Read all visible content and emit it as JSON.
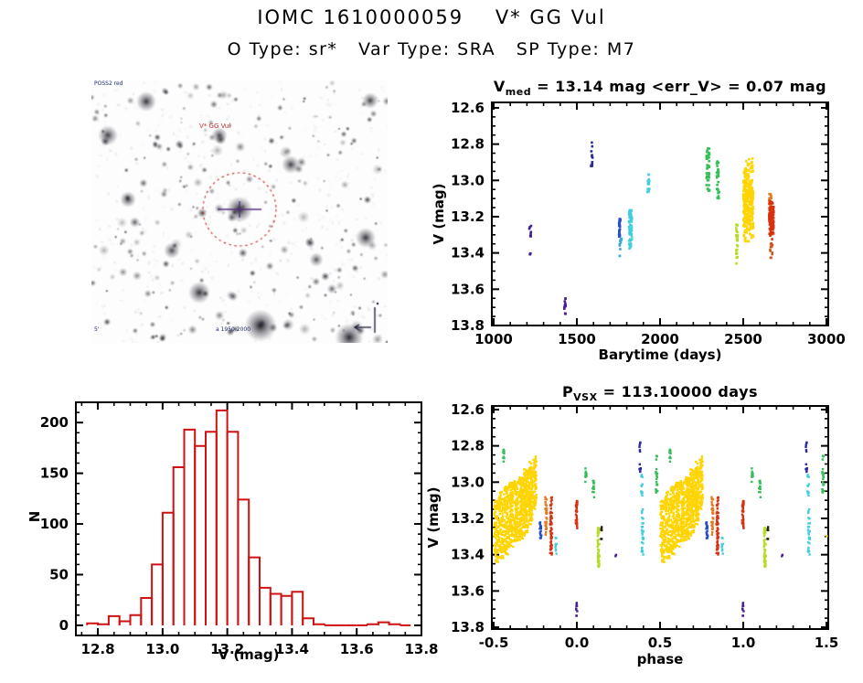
{
  "page": {
    "title": "IOMC 1610000059    V* GG Vul",
    "subtitle": "O Type: sr*   Var Type: SRA   SP Type: M7"
  },
  "finding_chart": {
    "survey_label": "POSS2 red",
    "target_label": "V* GG Vul",
    "coords_label": "a 1950 2000",
    "scale_label": "5'",
    "circle_color": "#cc2222"
  },
  "chart_data": [
    {
      "id": "lightcurve",
      "type": "scatter",
      "title": "V_med = 13.14 mag <err_V> = 0.07 mag",
      "title_base": "V",
      "title_sub": "med",
      "title_rest": " = 13.14 mag <err_V> = 0.07 mag",
      "xlabel": "Barytime (days)",
      "ylabel": "V (mag)",
      "xlim": [
        989,
        3011
      ],
      "ylim": [
        12.57,
        13.8
      ],
      "xticks": [
        1000,
        1500,
        2000,
        2500,
        3000
      ],
      "xtick_labels": [
        "1000",
        "1500",
        "2000",
        "2500",
        "3000"
      ],
      "yticks": [
        12.6,
        12.8,
        13.0,
        13.2,
        13.4,
        13.6,
        13.8
      ],
      "ytick_labels": [
        "12.6",
        "12.8",
        "13.0",
        "13.2",
        "13.4",
        "13.6",
        "13.8"
      ],
      "x_minor_step": 100,
      "y_minor_step": 0.05,
      "marker": "square",
      "marker_size": 2.6,
      "wrap": false,
      "clusters": [
        {
          "color": "#41208c",
          "x": 1220,
          "xs": 6,
          "y0": 13.25,
          "y1": 13.32,
          "n": 7
        },
        {
          "color": "#41208c",
          "x": 1219,
          "xs": 3,
          "y0": 13.39,
          "y1": 13.41,
          "n": 3
        },
        {
          "color": "#4a1f96",
          "x": 1428,
          "xs": 5,
          "y0": 13.65,
          "y1": 13.71,
          "n": 12
        },
        {
          "color": "#4a1f96",
          "x": 1430,
          "xs": 2,
          "y0": 13.72,
          "y1": 13.74,
          "n": 2
        },
        {
          "color": "#2b2b9e",
          "x": 1590,
          "xs": 5,
          "y0": 12.77,
          "y1": 12.96,
          "n": 14
        },
        {
          "color": "#2750c8",
          "x": 1757,
          "xs": 4,
          "y0": 13.21,
          "y1": 13.31,
          "n": 26
        },
        {
          "color": "#35a8d8",
          "x": 1763,
          "xs": 7,
          "y0": 13.32,
          "y1": 13.42,
          "n": 9
        },
        {
          "color": "#3fcfdf",
          "x": 1822,
          "xs": 9,
          "y0": 13.16,
          "y1": 13.38,
          "n": 55
        },
        {
          "color": "#3fcfdf",
          "x": 1930,
          "xs": 6,
          "y0": 12.96,
          "y1": 13.07,
          "n": 16
        },
        {
          "color": "#35bf58",
          "x": 2288,
          "xs": 9,
          "y0": 12.82,
          "y1": 13.06,
          "n": 45
        },
        {
          "color": "#35bf58",
          "x": 2348,
          "xs": 7,
          "y0": 12.89,
          "y1": 13.1,
          "n": 28
        },
        {
          "color": "#b4dd26",
          "x": 2462,
          "xs": 5,
          "y0": 13.23,
          "y1": 13.47,
          "n": 30
        },
        {
          "color": "#ffd400",
          "x": 2530,
          "xs": 30,
          "y0": 12.86,
          "y1": 13.36,
          "n": 300,
          "bias": "mid"
        },
        {
          "color": "#e8791e",
          "x": 2662,
          "xs": 8,
          "y0": 13.07,
          "y1": 13.15,
          "n": 14
        },
        {
          "color": "#d93110",
          "x": 2669,
          "xs": 14,
          "y0": 13.1,
          "y1": 13.33,
          "n": 110,
          "bias": "mid"
        },
        {
          "color": "#c9571c",
          "x": 2668,
          "xs": 8,
          "y0": 13.33,
          "y1": 13.43,
          "n": 12
        }
      ]
    },
    {
      "id": "histogram",
      "type": "histogram",
      "color": "#cf1211",
      "xlabel": "V (mag)",
      "ylabel": "N",
      "xlim": [
        12.732,
        13.8
      ],
      "ylim": [
        220,
        -10
      ],
      "xticks": [
        12.8,
        13.0,
        13.2,
        13.4,
        13.6,
        13.8
      ],
      "xtick_labels": [
        "12.8",
        "13.0",
        "13.2",
        "13.4",
        "13.6",
        "13.8"
      ],
      "yticks": [
        0,
        50,
        100,
        150,
        200
      ],
      "ytick_labels": [
        "0",
        "50",
        "100",
        "150",
        "200"
      ],
      "x_minor_step": 0.05,
      "y_minor_step": 10,
      "bin_start": 12.7667,
      "bin_width": 0.03333,
      "counts": [
        2,
        1,
        9,
        4,
        10,
        27,
        60,
        111,
        156,
        193,
        177,
        191,
        212,
        191,
        124,
        67,
        37,
        31,
        29,
        33,
        7,
        1,
        0,
        0,
        0,
        0,
        1,
        3,
        1,
        0
      ]
    },
    {
      "id": "phase",
      "type": "scatter",
      "title": "P_VSX = 113.10000 days",
      "title_base": "P",
      "title_sub": "VSX",
      "title_rest": " = 113.10000 days",
      "xlabel": "phase",
      "ylabel": "V (mag)",
      "xlim": [
        -0.511,
        1.511
      ],
      "ylim": [
        12.58,
        13.81
      ],
      "xticks": [
        -0.5,
        0.0,
        0.5,
        1.0,
        1.5
      ],
      "xtick_labels": [
        "-0.5",
        "0.0",
        "0.5",
        "1.0",
        "1.5"
      ],
      "yticks": [
        12.6,
        12.8,
        13.0,
        13.2,
        13.4,
        13.6,
        13.8
      ],
      "ytick_labels": [
        "12.6",
        "12.8",
        "13.0",
        "13.2",
        "13.4",
        "13.6",
        "13.8"
      ],
      "x_minor_step": 0.1,
      "y_minor_step": 0.05,
      "marker": "square",
      "marker_size": 2.4,
      "wrap": true,
      "clusters": [
        {
          "color": "#ffd400",
          "x": 0.515,
          "xs": 0.013,
          "y0": 13.1,
          "y1": 13.44,
          "n": 90
        },
        {
          "color": "#ffd400",
          "x": 0.545,
          "xs": 0.013,
          "y0": 13.05,
          "y1": 13.42,
          "n": 110
        },
        {
          "color": "#ffd400",
          "x": 0.575,
          "xs": 0.013,
          "y0": 13.02,
          "y1": 13.4,
          "n": 120
        },
        {
          "color": "#ffd400",
          "x": 0.605,
          "xs": 0.013,
          "y0": 13.0,
          "y1": 13.36,
          "n": 120
        },
        {
          "color": "#ffd400",
          "x": 0.635,
          "xs": 0.013,
          "y0": 12.99,
          "y1": 13.33,
          "n": 120
        },
        {
          "color": "#ffd400",
          "x": 0.665,
          "xs": 0.013,
          "y0": 12.97,
          "y1": 13.32,
          "n": 130
        },
        {
          "color": "#ffd400",
          "x": 0.695,
          "xs": 0.013,
          "y0": 12.93,
          "y1": 13.3,
          "n": 130
        },
        {
          "color": "#ffd400",
          "x": 0.722,
          "xs": 0.012,
          "y0": 12.87,
          "y1": 13.28,
          "n": 140,
          "bias": "mid"
        },
        {
          "color": "#ffd400",
          "x": 0.748,
          "xs": 0.01,
          "y0": 12.85,
          "y1": 13.15,
          "n": 70
        },
        {
          "color": "#35bf58",
          "x": 0.56,
          "xs": 0.004,
          "y0": 12.82,
          "y1": 12.89,
          "n": 10
        },
        {
          "color": "#2750c8",
          "x": 0.782,
          "xs": 0.005,
          "y0": 13.22,
          "y1": 13.31,
          "n": 20
        },
        {
          "color": "#e8791e",
          "x": 0.815,
          "xs": 0.005,
          "y0": 13.08,
          "y1": 13.3,
          "n": 35
        },
        {
          "color": "#d93110",
          "x": 0.845,
          "xs": 0.006,
          "y0": 13.07,
          "y1": 13.43,
          "n": 55,
          "bias": "mid"
        },
        {
          "color": "#3fcfdf",
          "x": 0.875,
          "xs": 0.005,
          "y0": 13.3,
          "y1": 13.42,
          "n": 9
        },
        {
          "color": "#d93110",
          "x": 0.998,
          "xs": 0.005,
          "y0": 13.1,
          "y1": 13.26,
          "n": 35
        },
        {
          "color": "#4a1f96",
          "x": 0.999,
          "xs": 0.004,
          "y0": 13.65,
          "y1": 13.74,
          "n": 9
        },
        {
          "color": "#35bf58",
          "x": 0.055,
          "xs": 0.004,
          "y0": 12.92,
          "y1": 13.0,
          "n": 9
        },
        {
          "color": "#35bf58",
          "x": 0.1,
          "xs": 0.005,
          "y0": 12.97,
          "y1": 13.1,
          "n": 14
        },
        {
          "color": "#b4dd26",
          "x": 0.13,
          "xs": 0.006,
          "y0": 13.25,
          "y1": 13.47,
          "n": 45
        },
        {
          "color": "#2a2018",
          "x": 0.148,
          "xs": 0.003,
          "y0": 13.24,
          "y1": 13.32,
          "n": 7
        },
        {
          "color": "#4a1f96",
          "x": 0.235,
          "xs": 0.003,
          "y0": 13.39,
          "y1": 13.41,
          "n": 2
        },
        {
          "color": "#2b2b9e",
          "x": 0.38,
          "xs": 0.004,
          "y0": 12.76,
          "y1": 12.96,
          "n": 12
        },
        {
          "color": "#3fcfdf",
          "x": 0.39,
          "xs": 0.005,
          "y0": 12.96,
          "y1": 13.08,
          "n": 12
        },
        {
          "color": "#3fcfdf",
          "x": 0.395,
          "xs": 0.006,
          "y0": 13.15,
          "y1": 13.4,
          "n": 28
        },
        {
          "color": "#35bf58",
          "x": 0.48,
          "xs": 0.006,
          "y0": 12.85,
          "y1": 13.06,
          "n": 20
        }
      ]
    }
  ]
}
